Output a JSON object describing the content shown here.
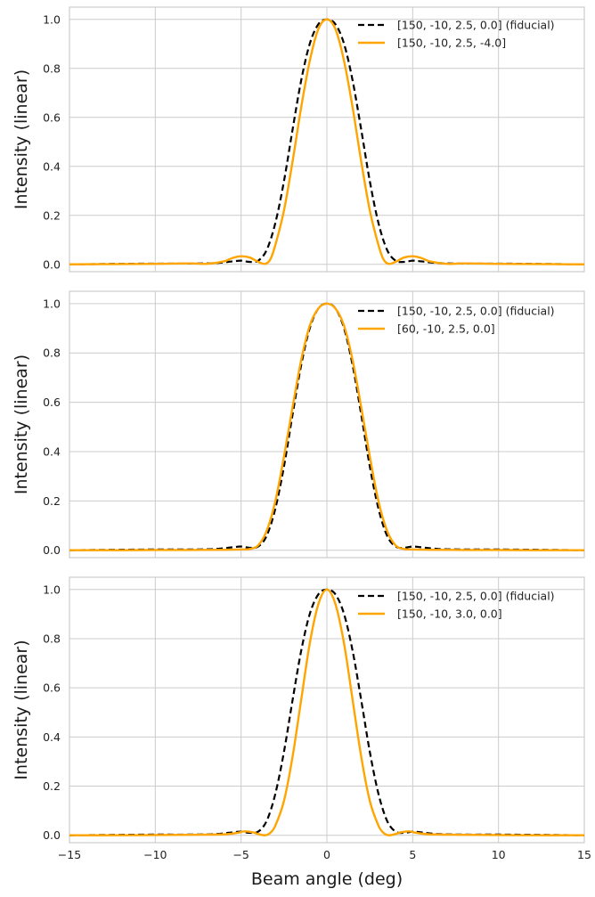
{
  "chart_data": [
    {
      "type": "line",
      "ylabel": "Intensity (linear)",
      "xlabel": "",
      "xlim": [
        -15,
        15
      ],
      "ylim": [
        -0.03,
        1.05
      ],
      "x_ticks": [
        -15,
        -10,
        -5,
        0,
        5,
        10,
        15
      ],
      "x_tick_labels": [],
      "y_ticks": [
        0.0,
        0.2,
        0.4,
        0.6,
        0.8,
        1.0
      ],
      "y_tick_labels": [
        "0.0",
        "0.2",
        "0.4",
        "0.6",
        "0.8",
        "1.0"
      ],
      "grid": true,
      "legend_position": "top-right",
      "series": [
        {
          "name": "[150, -10, 2.5, 0.0] (fiducial)",
          "color": "#000000",
          "style": "dashed",
          "x": [
            -15,
            -12,
            -10,
            -8,
            -6.5,
            -5.5,
            -5.0,
            -4.5,
            -4.0,
            -3.5,
            -3.0,
            -2.5,
            -2.0,
            -1.5,
            -1.0,
            -0.5,
            0,
            0.5,
            1.0,
            1.5,
            2.0,
            2.5,
            3.0,
            3.5,
            4.0,
            4.5,
            5.0,
            5.5,
            6.5,
            8,
            10,
            12,
            15
          ],
          "y": [
            0.0,
            0.002,
            0.003,
            0.003,
            0.005,
            0.012,
            0.015,
            0.01,
            0.015,
            0.06,
            0.17,
            0.34,
            0.55,
            0.75,
            0.9,
            0.98,
            1.0,
            0.98,
            0.9,
            0.75,
            0.55,
            0.34,
            0.17,
            0.06,
            0.015,
            0.01,
            0.015,
            0.012,
            0.005,
            0.003,
            0.003,
            0.002,
            0.0
          ]
        },
        {
          "name": "[150, -10, 2.5, -4.0]",
          "color": "#FFA500",
          "style": "solid",
          "x": [
            -15,
            -12,
            -10,
            -8,
            -7,
            -6,
            -5.5,
            -5.0,
            -4.5,
            -4.0,
            -3.6,
            -3.3,
            -3.0,
            -2.5,
            -2.0,
            -1.5,
            -1.0,
            -0.5,
            0,
            0.5,
            1.0,
            1.5,
            2.0,
            2.5,
            3.0,
            3.3,
            3.6,
            4.0,
            4.5,
            5.0,
            5.5,
            6,
            7,
            8,
            10,
            12,
            15
          ],
          "y": [
            0.0,
            0.001,
            0.002,
            0.004,
            0.002,
            0.012,
            0.026,
            0.033,
            0.028,
            0.01,
            0.002,
            0.02,
            0.08,
            0.22,
            0.42,
            0.64,
            0.83,
            0.96,
            1.0,
            0.96,
            0.83,
            0.64,
            0.42,
            0.22,
            0.08,
            0.02,
            0.002,
            0.01,
            0.028,
            0.033,
            0.026,
            0.012,
            0.002,
            0.004,
            0.002,
            0.001,
            0.0
          ]
        }
      ]
    },
    {
      "type": "line",
      "ylabel": "Intensity (linear)",
      "xlabel": "",
      "xlim": [
        -15,
        15
      ],
      "ylim": [
        -0.03,
        1.05
      ],
      "x_ticks": [
        -15,
        -10,
        -5,
        0,
        5,
        10,
        15
      ],
      "x_tick_labels": [],
      "y_ticks": [
        0.0,
        0.2,
        0.4,
        0.6,
        0.8,
        1.0
      ],
      "y_tick_labels": [
        "0.0",
        "0.2",
        "0.4",
        "0.6",
        "0.8",
        "1.0"
      ],
      "grid": true,
      "legend_position": "top-right",
      "series": [
        {
          "name": "[150, -10, 2.5, 0.0] (fiducial)",
          "color": "#000000",
          "style": "dashed",
          "x": [
            -15,
            -12,
            -10,
            -8,
            -6.5,
            -5.5,
            -5.0,
            -4.5,
            -4.0,
            -3.5,
            -3.0,
            -2.5,
            -2.0,
            -1.5,
            -1.0,
            -0.5,
            0,
            0.5,
            1.0,
            1.5,
            2.0,
            2.5,
            3.0,
            3.5,
            4.0,
            4.5,
            5.0,
            5.5,
            6.5,
            8,
            10,
            12,
            15
          ],
          "y": [
            0.0,
            0.002,
            0.003,
            0.003,
            0.005,
            0.012,
            0.015,
            0.01,
            0.015,
            0.06,
            0.17,
            0.34,
            0.55,
            0.75,
            0.9,
            0.98,
            1.0,
            0.98,
            0.9,
            0.75,
            0.55,
            0.34,
            0.17,
            0.06,
            0.015,
            0.01,
            0.015,
            0.012,
            0.005,
            0.003,
            0.003,
            0.002,
            0.0
          ]
        },
        {
          "name": "[60, -10, 2.5, 0.0]",
          "color": "#FFA500",
          "style": "solid",
          "x": [
            -15,
            -12,
            -10,
            -8,
            -6,
            -5.0,
            -4.5,
            -4.0,
            -3.5,
            -3.0,
            -2.5,
            -2.0,
            -1.5,
            -1.0,
            -0.5,
            0,
            0.5,
            1.0,
            1.5,
            2.0,
            2.5,
            3.0,
            3.5,
            4.0,
            4.5,
            5.0,
            6,
            8,
            10,
            12,
            15
          ],
          "y": [
            0.0,
            0.0,
            0.001,
            0.001,
            0.002,
            0.003,
            0.005,
            0.02,
            0.08,
            0.2,
            0.38,
            0.58,
            0.77,
            0.91,
            0.98,
            1.0,
            0.98,
            0.91,
            0.77,
            0.58,
            0.38,
            0.2,
            0.08,
            0.02,
            0.005,
            0.003,
            0.002,
            0.001,
            0.001,
            0.0,
            0.0
          ]
        }
      ]
    },
    {
      "type": "line",
      "ylabel": "Intensity (linear)",
      "xlabel": "Beam angle (deg)",
      "xlim": [
        -15,
        15
      ],
      "ylim": [
        -0.03,
        1.05
      ],
      "x_ticks": [
        -15,
        -10,
        -5,
        0,
        5,
        10,
        15
      ],
      "x_tick_labels": [
        "−15",
        "−10",
        "−5",
        "0",
        "5",
        "10",
        "15"
      ],
      "y_ticks": [
        0.0,
        0.2,
        0.4,
        0.6,
        0.8,
        1.0
      ],
      "y_tick_labels": [
        "0.0",
        "0.2",
        "0.4",
        "0.6",
        "0.8",
        "1.0"
      ],
      "grid": true,
      "legend_position": "top-right",
      "series": [
        {
          "name": "[150, -10, 2.5, 0.0] (fiducial)",
          "color": "#000000",
          "style": "dashed",
          "x": [
            -15,
            -12,
            -10,
            -8,
            -6.5,
            -5.5,
            -5.0,
            -4.5,
            -4.0,
            -3.5,
            -3.0,
            -2.5,
            -2.0,
            -1.5,
            -1.0,
            -0.5,
            0,
            0.5,
            1.0,
            1.5,
            2.0,
            2.5,
            3.0,
            3.5,
            4.0,
            4.5,
            5.0,
            5.5,
            6.5,
            8,
            10,
            12,
            15
          ],
          "y": [
            0.0,
            0.002,
            0.003,
            0.003,
            0.005,
            0.012,
            0.015,
            0.01,
            0.015,
            0.06,
            0.17,
            0.34,
            0.55,
            0.75,
            0.9,
            0.98,
            1.0,
            0.98,
            0.9,
            0.75,
            0.55,
            0.34,
            0.17,
            0.06,
            0.015,
            0.01,
            0.015,
            0.012,
            0.005,
            0.003,
            0.003,
            0.002,
            0.0
          ]
        },
        {
          "name": "[150, -10, 3.0, 0.0]",
          "color": "#FFA500",
          "style": "solid",
          "x": [
            -15,
            -12,
            -10,
            -8,
            -6,
            -5.2,
            -4.8,
            -4.3,
            -4.0,
            -3.6,
            -3.3,
            -3.0,
            -2.5,
            -2.0,
            -1.5,
            -1.0,
            -0.5,
            0,
            0.5,
            1.0,
            1.5,
            2.0,
            2.5,
            3.0,
            3.3,
            3.6,
            4.0,
            4.3,
            4.8,
            5.2,
            6,
            8,
            10,
            12,
            15
          ],
          "y": [
            0.0,
            0.0,
            0.001,
            0.002,
            0.004,
            0.01,
            0.016,
            0.012,
            0.005,
            0.0,
            0.01,
            0.04,
            0.14,
            0.32,
            0.55,
            0.78,
            0.94,
            1.0,
            0.94,
            0.78,
            0.55,
            0.32,
            0.14,
            0.04,
            0.01,
            0.0,
            0.005,
            0.012,
            0.016,
            0.01,
            0.004,
            0.002,
            0.001,
            0.0,
            0.0
          ]
        }
      ]
    }
  ]
}
